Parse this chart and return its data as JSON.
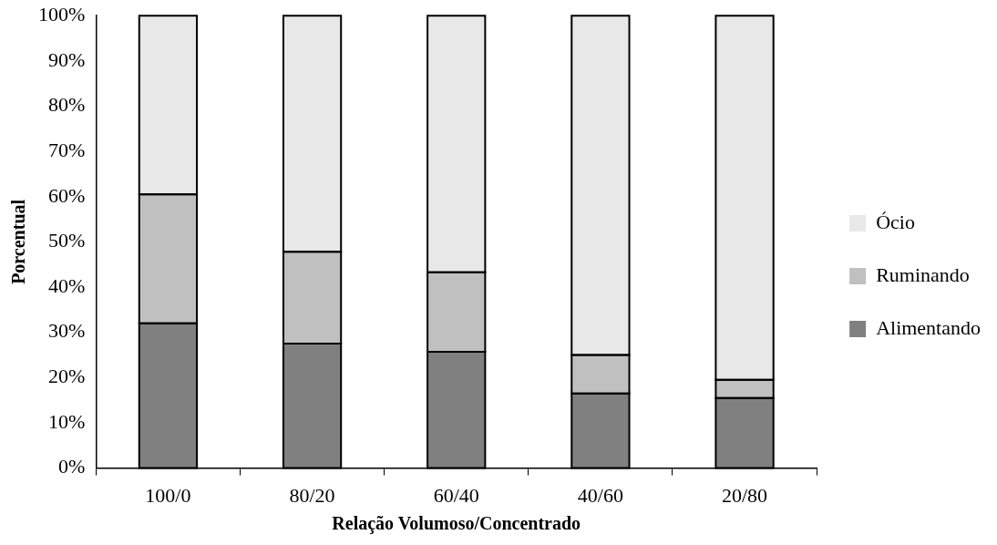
{
  "chart_data": {
    "type": "bar",
    "stacked": true,
    "xlabel": "Relação Volumoso/Concentrado",
    "ylabel": "Porcentual",
    "categories": [
      "100/0",
      "80/20",
      "60/40",
      "40/60",
      "20/80"
    ],
    "series": [
      {
        "name": "Alimentando",
        "color": "#808080",
        "values": [
          32,
          27.5,
          25.7,
          16.5,
          15.5
        ]
      },
      {
        "name": "Ruminando",
        "color": "#c0c0c0",
        "values": [
          28.5,
          20.3,
          17.6,
          8.5,
          4
        ]
      },
      {
        "name": "Ócio",
        "color": "#e8e8e8",
        "values": [
          39.5,
          52.2,
          56.7,
          75,
          80.5
        ]
      }
    ],
    "ylim": [
      0,
      100
    ],
    "yticks": [
      {
        "value": 0,
        "label": "0%"
      },
      {
        "value": 10,
        "label": "10%"
      },
      {
        "value": 20,
        "label": "20%"
      },
      {
        "value": 30,
        "label": "30%"
      },
      {
        "value": 40,
        "label": "40%"
      },
      {
        "value": 50,
        "label": "50%"
      },
      {
        "value": 60,
        "label": "60%"
      },
      {
        "value": 70,
        "label": "70%"
      },
      {
        "value": 80,
        "label": "80%"
      },
      {
        "value": 90,
        "label": "90%"
      },
      {
        "value": 100,
        "label": "100%"
      }
    ],
    "grid": false,
    "legend": "right"
  }
}
